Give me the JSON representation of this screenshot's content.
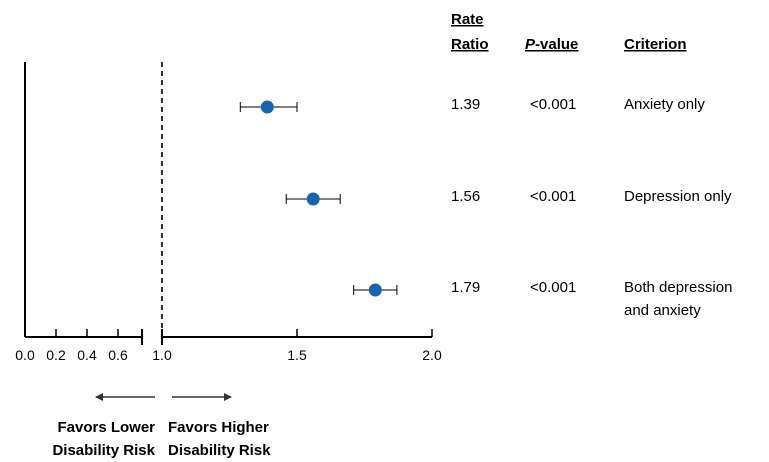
{
  "chart_data": {
    "type": "forest",
    "x_ticks": [
      "0.0",
      "0.2",
      "0.4",
      "0.6",
      "1.0",
      "1.5",
      "2.0"
    ],
    "x_tick_values": [
      0.0,
      0.2,
      0.4,
      0.6,
      1.0,
      1.5,
      2.0
    ],
    "xlim": [
      0.0,
      2.0
    ],
    "axis_break": true,
    "reference_line": 1.0,
    "columns": {
      "rate_ratio": [
        "Rate",
        "Ratio"
      ],
      "p_value_italic": "P",
      "p_value_rest": "-value",
      "criterion": "Criterion"
    },
    "rows": [
      {
        "criterion": [
          "Anxiety only"
        ],
        "rate_ratio": 1.39,
        "rate_ratio_label": "1.39",
        "ci_low": 1.29,
        "ci_high": 1.5,
        "p_value": "<0.001"
      },
      {
        "criterion": [
          "Depression only"
        ],
        "rate_ratio": 1.56,
        "rate_ratio_label": "1.56",
        "ci_low": 1.46,
        "ci_high": 1.66,
        "p_value": "<0.001"
      },
      {
        "criterion": [
          "Both depression",
          "and anxiety"
        ],
        "rate_ratio": 1.79,
        "rate_ratio_label": "1.79",
        "ci_low": 1.71,
        "ci_high": 1.87,
        "p_value": "<0.001"
      }
    ],
    "favors_left": [
      "Favors Lower",
      "Disability Risk"
    ],
    "favors_right": [
      "Favors Higher",
      "Disability Risk"
    ],
    "point_color": "#1565b0",
    "line_color": "#000000"
  }
}
